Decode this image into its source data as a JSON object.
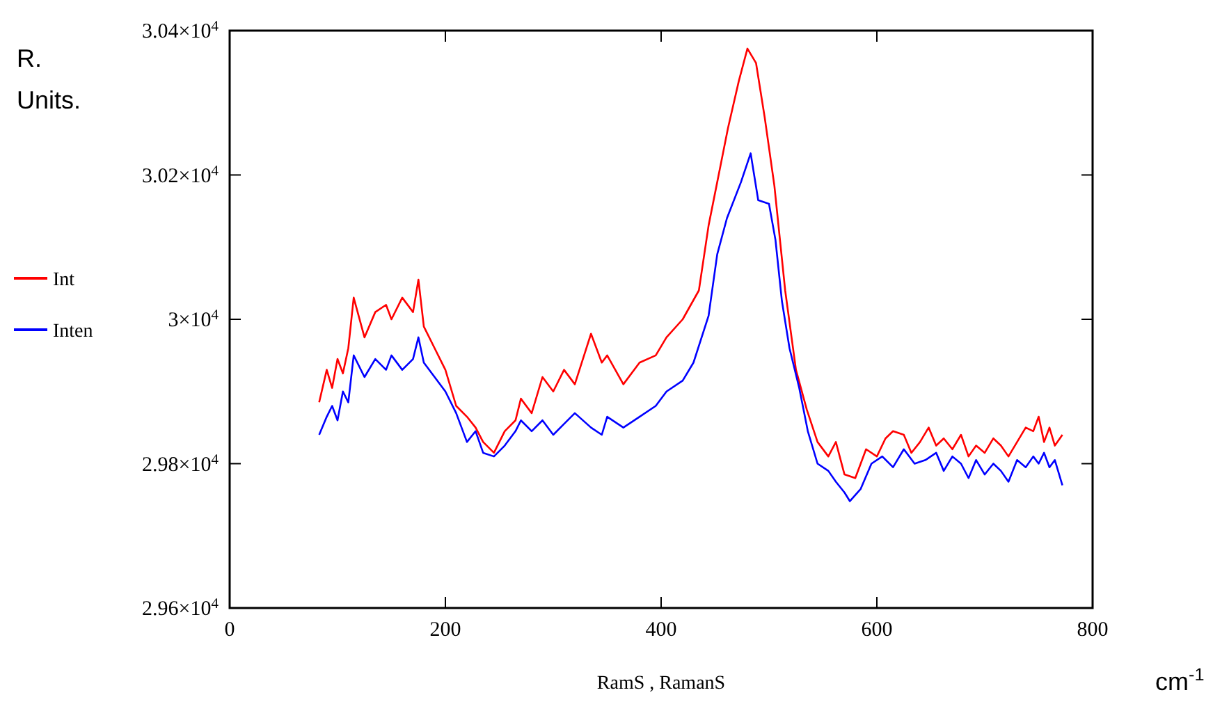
{
  "chart_data": {
    "type": "line",
    "xlabel": "RamS , RamanS",
    "ylabel": "R. Units.",
    "annotations": [
      "cm$^{-1}$"
    ],
    "xlim": [
      0,
      800
    ],
    "xticks": [
      0,
      200,
      400,
      600,
      800
    ],
    "ylim": [
      29600,
      30400
    ],
    "yticks": [
      {
        "value": 29600,
        "label": "2.96×10$^{4}$"
      },
      {
        "value": 29800,
        "label": "2.98×10$^{4}$"
      },
      {
        "value": 30000,
        "label": "3×10$^{4}$"
      },
      {
        "value": 30200,
        "label": "3.02×10$^{4}$"
      },
      {
        "value": 30400,
        "label": "3.04×10$^{4}$"
      }
    ],
    "grid": false,
    "legend": "left",
    "line_style": "solid",
    "marker": "none",
    "series": [
      {
        "name": "Int",
        "color": "#ff0000",
        "x": [
          83,
          90,
          95,
          100,
          105,
          110,
          115,
          125,
          135,
          145,
          150,
          160,
          170,
          175,
          180,
          190,
          200,
          210,
          220,
          228,
          235,
          245,
          255,
          265,
          270,
          280,
          290,
          300,
          310,
          320,
          335,
          345,
          350,
          365,
          380,
          395,
          405,
          420,
          435,
          444,
          452,
          462,
          472,
          480,
          488,
          496,
          505,
          515,
          525,
          535,
          545,
          555,
          562,
          570,
          580,
          590,
          600,
          608,
          615,
          625,
          632,
          640,
          648,
          655,
          662,
          670,
          678,
          685,
          692,
          700,
          708,
          715,
          722,
          730,
          738,
          745,
          750,
          755,
          760,
          765,
          772
        ],
        "values": [
          29885,
          29930,
          29905,
          29945,
          29925,
          29960,
          30030,
          29975,
          30010,
          30020,
          30000,
          30030,
          30010,
          30055,
          29990,
          29960,
          29930,
          29880,
          29865,
          29850,
          29830,
          29815,
          29845,
          29860,
          29890,
          29870,
          29920,
          29900,
          29930,
          29910,
          29980,
          29940,
          29950,
          29910,
          29940,
          29950,
          29975,
          30000,
          30040,
          30130,
          30190,
          30265,
          30330,
          30375,
          30355,
          30280,
          30185,
          30040,
          29930,
          29875,
          29830,
          29810,
          29830,
          29785,
          29780,
          29820,
          29810,
          29835,
          29845,
          29840,
          29815,
          29830,
          29850,
          29825,
          29835,
          29820,
          29840,
          29810,
          29825,
          29815,
          29835,
          29825,
          29810,
          29830,
          29850,
          29845,
          29865,
          29830,
          29850,
          29825,
          29840
        ]
      },
      {
        "name": "Inten",
        "color": "#0000ff",
        "x": [
          83,
          90,
          95,
          100,
          105,
          110,
          115,
          125,
          135,
          145,
          150,
          160,
          170,
          175,
          180,
          190,
          200,
          210,
          220,
          228,
          235,
          245,
          255,
          265,
          270,
          280,
          290,
          300,
          310,
          320,
          335,
          345,
          350,
          365,
          380,
          395,
          405,
          420,
          430,
          444,
          452,
          461,
          474,
          483,
          490,
          500,
          506,
          512,
          519,
          528,
          536,
          545,
          555,
          562,
          570,
          575,
          585,
          595,
          605,
          615,
          625,
          635,
          645,
          655,
          662,
          670,
          678,
          685,
          692,
          700,
          708,
          715,
          722,
          730,
          738,
          745,
          750,
          755,
          760,
          765,
          772
        ],
        "values": [
          29840,
          29865,
          29880,
          29860,
          29900,
          29885,
          29950,
          29920,
          29945,
          29930,
          29950,
          29930,
          29945,
          29975,
          29940,
          29920,
          29900,
          29870,
          29830,
          29845,
          29815,
          29810,
          29825,
          29845,
          29860,
          29845,
          29860,
          29840,
          29855,
          29870,
          29850,
          29840,
          29865,
          29850,
          29865,
          29880,
          29900,
          29915,
          29940,
          30005,
          30090,
          30140,
          30190,
          30230,
          30165,
          30160,
          30110,
          30025,
          29960,
          29905,
          29845,
          29800,
          29790,
          29775,
          29760,
          29748,
          29765,
          29800,
          29810,
          29795,
          29820,
          29800,
          29805,
          29815,
          29790,
          29810,
          29800,
          29780,
          29805,
          29785,
          29800,
          29790,
          29775,
          29805,
          29795,
          29810,
          29800,
          29815,
          29795,
          29805,
          29770
        ]
      }
    ]
  }
}
